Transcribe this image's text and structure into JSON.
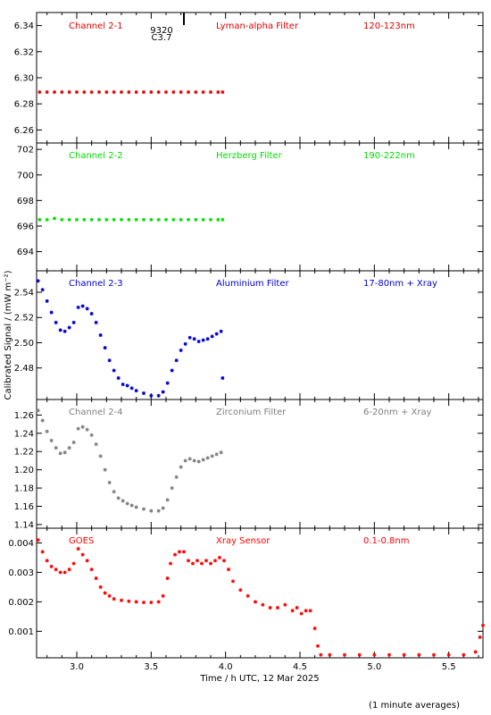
{
  "ylabel": "Calibrated Signal / (mW m⁻²)",
  "xlabel": "Time / h UTC, 12 Mar 2025",
  "footnote": "(1 minute averages)",
  "marker_label": {
    "line1": "9320",
    "line2": "C3.7",
    "x": 3.72
  },
  "x_range": [
    2.73,
    5.73
  ],
  "x_ticks": [
    "3.0",
    "3.5",
    "4.0",
    "4.5",
    "5.0",
    "5.5"
  ],
  "chart_data": [
    {
      "type": "scatter",
      "title_left": "Channel 2-1",
      "title_mid": "Lyman-alpha Filter",
      "title_right": "120-123nm",
      "color": "#dd0000",
      "ylim": [
        6.25,
        6.35
      ],
      "yticks": [
        "6.26",
        "6.28",
        "6.30",
        "6.32",
        "6.34"
      ],
      "x": [
        2.75,
        2.8,
        2.85,
        2.9,
        2.95,
        3.0,
        3.05,
        3.1,
        3.15,
        3.2,
        3.25,
        3.3,
        3.35,
        3.4,
        3.45,
        3.5,
        3.55,
        3.6,
        3.65,
        3.7,
        3.75,
        3.8,
        3.85,
        3.9,
        3.95,
        3.98
      ],
      "y": [
        6.289,
        6.289,
        6.289,
        6.289,
        6.289,
        6.289,
        6.289,
        6.289,
        6.289,
        6.289,
        6.289,
        6.289,
        6.289,
        6.289,
        6.289,
        6.289,
        6.289,
        6.289,
        6.289,
        6.289,
        6.289,
        6.289,
        6.289,
        6.289,
        6.289,
        6.289
      ]
    },
    {
      "type": "scatter",
      "title_left": "Channel 2-2",
      "title_mid": "Herzberg Filter",
      "title_right": "190-222nm",
      "color": "#00dd00",
      "ylim": [
        692.5,
        702.5
      ],
      "yticks": [
        "694",
        "696",
        "698",
        "700",
        "702"
      ],
      "x": [
        2.75,
        2.8,
        2.85,
        2.9,
        2.95,
        3.0,
        3.05,
        3.1,
        3.15,
        3.2,
        3.25,
        3.3,
        3.35,
        3.4,
        3.45,
        3.5,
        3.55,
        3.6,
        3.65,
        3.7,
        3.75,
        3.8,
        3.85,
        3.9,
        3.95,
        3.98
      ],
      "y": [
        696.5,
        696.5,
        696.6,
        696.5,
        696.5,
        696.5,
        696.5,
        696.5,
        696.5,
        696.5,
        696.5,
        696.5,
        696.5,
        696.5,
        696.5,
        696.5,
        696.5,
        696.5,
        696.5,
        696.5,
        696.5,
        696.5,
        696.5,
        696.5,
        696.5,
        696.5
      ]
    },
    {
      "type": "scatter",
      "title_left": "Channel 2-3",
      "title_mid": "Aluminium Filter",
      "title_right": "17-80nm + Xray",
      "color": "#0000cc",
      "ylim": [
        2.455,
        2.557
      ],
      "yticks": [
        "2.48",
        "2.50",
        "2.52",
        "2.54"
      ],
      "x": [
        2.74,
        2.77,
        2.8,
        2.83,
        2.86,
        2.89,
        2.92,
        2.95,
        2.98,
        3.01,
        3.04,
        3.07,
        3.1,
        3.13,
        3.16,
        3.19,
        3.22,
        3.25,
        3.28,
        3.31,
        3.34,
        3.37,
        3.4,
        3.45,
        3.5,
        3.55,
        3.58,
        3.61,
        3.64,
        3.67,
        3.7,
        3.73,
        3.76,
        3.79,
        3.82,
        3.85,
        3.88,
        3.91,
        3.94,
        3.97,
        3.98
      ],
      "y": [
        2.549,
        2.542,
        2.533,
        2.524,
        2.516,
        2.51,
        2.509,
        2.512,
        2.516,
        2.528,
        2.529,
        2.527,
        2.523,
        2.516,
        2.506,
        2.496,
        2.486,
        2.478,
        2.472,
        2.467,
        2.466,
        2.464,
        2.462,
        2.46,
        2.458,
        2.458,
        2.461,
        2.468,
        2.478,
        2.486,
        2.494,
        2.499,
        2.504,
        2.503,
        2.501,
        2.502,
        2.503,
        2.505,
        2.507,
        2.509,
        2.472
      ]
    },
    {
      "type": "scatter",
      "title_left": "Channel 2-4",
      "title_mid": "Zirconium Filter",
      "title_right": "6-20nm + Xray",
      "color": "#808080",
      "ylim": [
        1.136,
        1.277
      ],
      "yticks": [
        "1.14",
        "1.16",
        "1.18",
        "1.20",
        "1.22",
        "1.24",
        "1.26"
      ],
      "x": [
        2.74,
        2.77,
        2.8,
        2.83,
        2.86,
        2.89,
        2.92,
        2.95,
        2.98,
        3.01,
        3.04,
        3.07,
        3.1,
        3.13,
        3.16,
        3.19,
        3.22,
        3.25,
        3.28,
        3.31,
        3.34,
        3.37,
        3.4,
        3.45,
        3.5,
        3.55,
        3.58,
        3.61,
        3.64,
        3.67,
        3.7,
        3.73,
        3.76,
        3.79,
        3.82,
        3.85,
        3.88,
        3.91,
        3.94,
        3.97
      ],
      "y": [
        1.265,
        1.254,
        1.242,
        1.232,
        1.224,
        1.218,
        1.219,
        1.224,
        1.23,
        1.245,
        1.247,
        1.244,
        1.238,
        1.228,
        1.215,
        1.2,
        1.186,
        1.176,
        1.169,
        1.166,
        1.163,
        1.161,
        1.159,
        1.157,
        1.155,
        1.155,
        1.158,
        1.167,
        1.18,
        1.192,
        1.203,
        1.21,
        1.212,
        1.21,
        1.209,
        1.211,
        1.213,
        1.215,
        1.217,
        1.219
      ]
    },
    {
      "type": "scatter",
      "title_left": "GOES",
      "title_mid": "Xray Sensor",
      "title_right": "0.1-0.8nm",
      "color": "#ff0000",
      "ylim": [
        0.0001,
        0.0045
      ],
      "yticks": [
        "0.001",
        "0.002",
        "0.003",
        "0.004"
      ],
      "x": [
        2.74,
        2.77,
        2.8,
        2.83,
        2.86,
        2.89,
        2.92,
        2.95,
        2.98,
        3.01,
        3.04,
        3.07,
        3.1,
        3.13,
        3.16,
        3.19,
        3.22,
        3.25,
        3.3,
        3.35,
        3.4,
        3.45,
        3.5,
        3.55,
        3.58,
        3.61,
        3.63,
        3.66,
        3.69,
        3.72,
        3.75,
        3.78,
        3.81,
        3.84,
        3.87,
        3.9,
        3.93,
        3.96,
        3.99,
        4.02,
        4.05,
        4.1,
        4.15,
        4.2,
        4.25,
        4.3,
        4.35,
        4.4,
        4.45,
        4.48,
        4.51,
        4.54,
        4.57,
        4.6,
        4.62,
        4.64,
        4.7,
        4.8,
        4.9,
        5.0,
        5.1,
        5.2,
        5.3,
        5.4,
        5.5,
        5.6,
        5.68,
        5.71,
        5.73
      ],
      "y": [
        0.0041,
        0.0037,
        0.0034,
        0.0032,
        0.0031,
        0.003,
        0.003,
        0.0031,
        0.0033,
        0.0038,
        0.0036,
        0.0034,
        0.0031,
        0.0028,
        0.0025,
        0.0023,
        0.0022,
        0.0021,
        0.00205,
        0.00202,
        0.002,
        0.00198,
        0.00198,
        0.002,
        0.0022,
        0.0028,
        0.0033,
        0.0036,
        0.0037,
        0.0037,
        0.0034,
        0.0033,
        0.0034,
        0.0033,
        0.0034,
        0.0033,
        0.0034,
        0.0035,
        0.0034,
        0.0031,
        0.0027,
        0.0024,
        0.0022,
        0.002,
        0.0019,
        0.0018,
        0.0018,
        0.0019,
        0.0017,
        0.0018,
        0.0016,
        0.0017,
        0.0017,
        0.0011,
        0.0005,
        0.0002,
        0.0002,
        0.0002,
        0.0002,
        0.0002,
        0.0002,
        0.0002,
        0.0002,
        0.0002,
        0.0002,
        0.0002,
        0.0003,
        0.0008,
        0.0012
      ]
    }
  ]
}
